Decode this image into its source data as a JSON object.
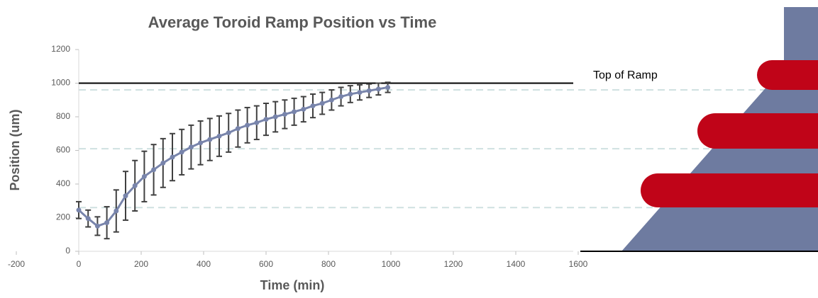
{
  "chart_data": {
    "type": "line",
    "title": "Average Toroid Ramp Position vs Time",
    "x_label": "Time (min)",
    "y_label": "Position (um)",
    "annotation": "Top of Ramp",
    "top_line": 1000,
    "reference_lines": [
      960,
      610,
      260
    ],
    "x": [
      0,
      30,
      60,
      90,
      120,
      150,
      180,
      210,
      240,
      270,
      300,
      330,
      360,
      390,
      420,
      450,
      480,
      510,
      540,
      570,
      600,
      630,
      660,
      690,
      720,
      750,
      780,
      810,
      840,
      870,
      900,
      930,
      960,
      990
    ],
    "series": [
      {
        "color": "#7884ab",
        "values": [
          245,
          195,
          150,
          170,
          240,
          330,
          390,
          445,
          485,
          525,
          560,
          590,
          620,
          645,
          665,
          685,
          705,
          730,
          750,
          765,
          785,
          800,
          815,
          830,
          845,
          865,
          880,
          900,
          920,
          935,
          945,
          955,
          965,
          975
        ],
        "errors": [
          50,
          50,
          55,
          95,
          125,
          145,
          150,
          150,
          150,
          145,
          140,
          135,
          130,
          130,
          125,
          120,
          115,
          110,
          105,
          100,
          95,
          90,
          85,
          80,
          75,
          70,
          65,
          60,
          55,
          50,
          45,
          40,
          35,
          30
        ]
      }
    ],
    "xlim": [
      -200,
      1600
    ],
    "xticks": [
      -200,
      0,
      200,
      400,
      600,
      800,
      1000,
      1200,
      1400,
      1600
    ],
    "ylim": [
      0,
      1200
    ],
    "yticks": [
      0,
      200,
      400,
      600,
      800,
      1000,
      1200
    ]
  }
}
